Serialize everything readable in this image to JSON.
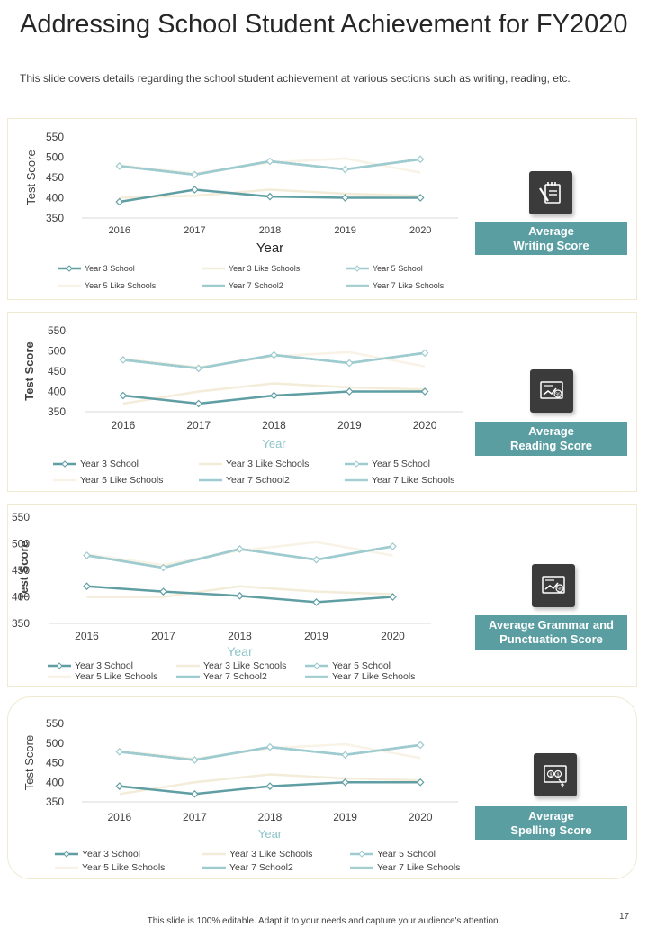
{
  "page": {
    "title": "Addressing School Student Achievement for FY2020",
    "subtitle": "This slide covers details regarding the school student achievement  at various  sections such as writing, reading, etc.",
    "footer": "This slide is 100% editable. Adapt it to your needs and capture your audience's attention.",
    "page_number": "17"
  },
  "colors": {
    "teal_dark": "#5f9ea3",
    "teal_light": "#9ecbcf",
    "cream": "#f3ecd9",
    "cream_light": "#f8f3e6",
    "label_bg": "#5a9ea2",
    "icon_bg": "#3b3b3b"
  },
  "panels": [
    {
      "label": "Average\nWriting Score",
      "label_lines": [
        "Average",
        "Writing Score"
      ],
      "icon": "notepad-pen-icon"
    },
    {
      "label": "Average\nReading Score",
      "label_lines": [
        "Average",
        "Reading Score"
      ],
      "icon": "chart-screen-icon"
    },
    {
      "label": "Average Grammar and\nPunctuation Score",
      "label_lines": [
        "Average Grammar and",
        "Punctuation  Score"
      ],
      "icon": "percent-screen-icon"
    },
    {
      "label": "Average\nSpelling Score",
      "label_lines": [
        "Average",
        "Spelling Score"
      ],
      "icon": "money-screen-icon"
    }
  ],
  "chart_data": [
    {
      "type": "line",
      "title": "Average Writing Score",
      "xlabel": "Year",
      "ylabel": "Test Score",
      "categories": [
        "2016",
        "2017",
        "2018",
        "2019",
        "2020"
      ],
      "yticks": [
        "550",
        "500",
        "450",
        "400",
        "350"
      ],
      "ylim": [
        350,
        550
      ],
      "legend": "bottom",
      "series": [
        {
          "name": "Year 3 School",
          "values": [
            390,
            420,
            403,
            400,
            400
          ],
          "color": "#5f9ea3",
          "marker": true
        },
        {
          "name": "Year 3  Like Schools",
          "values": [
            400,
            405,
            420,
            410,
            405
          ],
          "color": "#f3ecd9",
          "marker": false
        },
        {
          "name": "Year 5 School",
          "values": [
            478,
            457,
            490,
            470,
            495
          ],
          "color": "#9ecbcf",
          "marker": true
        },
        {
          "name": "Year 5  Like Schools",
          "values": [
            480,
            460,
            487,
            497,
            462
          ],
          "color": "#f8f3e6",
          "marker": false
        },
        {
          "name": "Year 7 School2",
          "values": [
            478,
            457,
            490,
            470,
            495
          ],
          "color": "#9ecbcf",
          "marker": false
        },
        {
          "name": "Year 7  Like Schools",
          "values": [
            478,
            457,
            490,
            470,
            495
          ],
          "color": "#a6cfd2",
          "marker": false
        }
      ]
    },
    {
      "type": "line",
      "title": "Average Reading Score",
      "xlabel": "Year",
      "ylabel": "Test Score",
      "categories": [
        "2016",
        "2017",
        "2018",
        "2019",
        "2020"
      ],
      "yticks": [
        "550",
        "500",
        "450",
        "400",
        "350"
      ],
      "ylim": [
        350,
        550
      ],
      "legend": "bottom",
      "series": [
        {
          "name": "Year 3 School",
          "values": [
            390,
            370,
            390,
            400,
            400
          ],
          "color": "#5f9ea3",
          "marker": true
        },
        {
          "name": "Year 3  Like Schools",
          "values": [
            370,
            400,
            420,
            410,
            405
          ],
          "color": "#f3ecd9",
          "marker": false
        },
        {
          "name": "Year 5 School",
          "values": [
            478,
            457,
            490,
            470,
            495
          ],
          "color": "#9ecbcf",
          "marker": true
        },
        {
          "name": "Year 5  Like Schools",
          "values": [
            480,
            460,
            487,
            497,
            462
          ],
          "color": "#f8f3e6",
          "marker": false
        },
        {
          "name": "Year 7 School2",
          "values": [
            478,
            457,
            490,
            470,
            495
          ],
          "color": "#9ecbcf",
          "marker": false
        },
        {
          "name": "Year 7  Like Schools",
          "values": [
            478,
            457,
            490,
            470,
            495
          ],
          "color": "#a6cfd2",
          "marker": false
        }
      ]
    },
    {
      "type": "line",
      "title": "Average Grammar and Punctuation Score",
      "xlabel": "Year",
      "ylabel": "Test Score",
      "categories": [
        "2016",
        "2017",
        "2018",
        "2019",
        "2020"
      ],
      "yticks": [
        "550",
        "500",
        "450",
        "400",
        "350"
      ],
      "ylim": [
        350,
        550
      ],
      "legend": "bottom",
      "series": [
        {
          "name": "Year 3 School",
          "values": [
            420,
            410,
            402,
            390,
            400
          ],
          "color": "#5f9ea3",
          "marker": true
        },
        {
          "name": "Year 3  Like Schools",
          "values": [
            400,
            400,
            420,
            410,
            405
          ],
          "color": "#f3ecd9",
          "marker": false
        },
        {
          "name": "Year 5 School",
          "values": [
            478,
            455,
            490,
            470,
            495
          ],
          "color": "#9ecbcf",
          "marker": true
        },
        {
          "name": "Year 5  Like Schools",
          "values": [
            480,
            460,
            487,
            503,
            478
          ],
          "color": "#f8f3e6",
          "marker": false
        },
        {
          "name": "Year 7 School2",
          "values": [
            478,
            455,
            490,
            470,
            495
          ],
          "color": "#9ecbcf",
          "marker": false
        },
        {
          "name": "Year 7  Like Schools",
          "values": [
            478,
            455,
            490,
            470,
            495
          ],
          "color": "#a6cfd2",
          "marker": false
        }
      ]
    },
    {
      "type": "line",
      "title": "Average Spelling Score",
      "xlabel": "Year",
      "ylabel": "Test Score",
      "categories": [
        "2016",
        "2017",
        "2018",
        "2019",
        "2020"
      ],
      "yticks": [
        "550",
        "500",
        "450",
        "400",
        "350"
      ],
      "ylim": [
        350,
        550
      ],
      "legend": "bottom",
      "series": [
        {
          "name": "Year 3 School",
          "values": [
            390,
            370,
            390,
            400,
            400
          ],
          "color": "#5f9ea3",
          "marker": true
        },
        {
          "name": "Year 3  Like Schools",
          "values": [
            370,
            400,
            420,
            410,
            405
          ],
          "color": "#f3ecd9",
          "marker": false
        },
        {
          "name": "Year 5 School",
          "values": [
            478,
            457,
            490,
            470,
            495
          ],
          "color": "#9ecbcf",
          "marker": true
        },
        {
          "name": "Year 5  Like Schools",
          "values": [
            480,
            460,
            487,
            497,
            462
          ],
          "color": "#f8f3e6",
          "marker": false
        },
        {
          "name": "Year 7 School2",
          "values": [
            478,
            457,
            490,
            470,
            495
          ],
          "color": "#9ecbcf",
          "marker": false
        },
        {
          "name": "Year 7  Like Schools",
          "values": [
            478,
            457,
            490,
            470,
            495
          ],
          "color": "#a6cfd2",
          "marker": false
        }
      ]
    }
  ]
}
